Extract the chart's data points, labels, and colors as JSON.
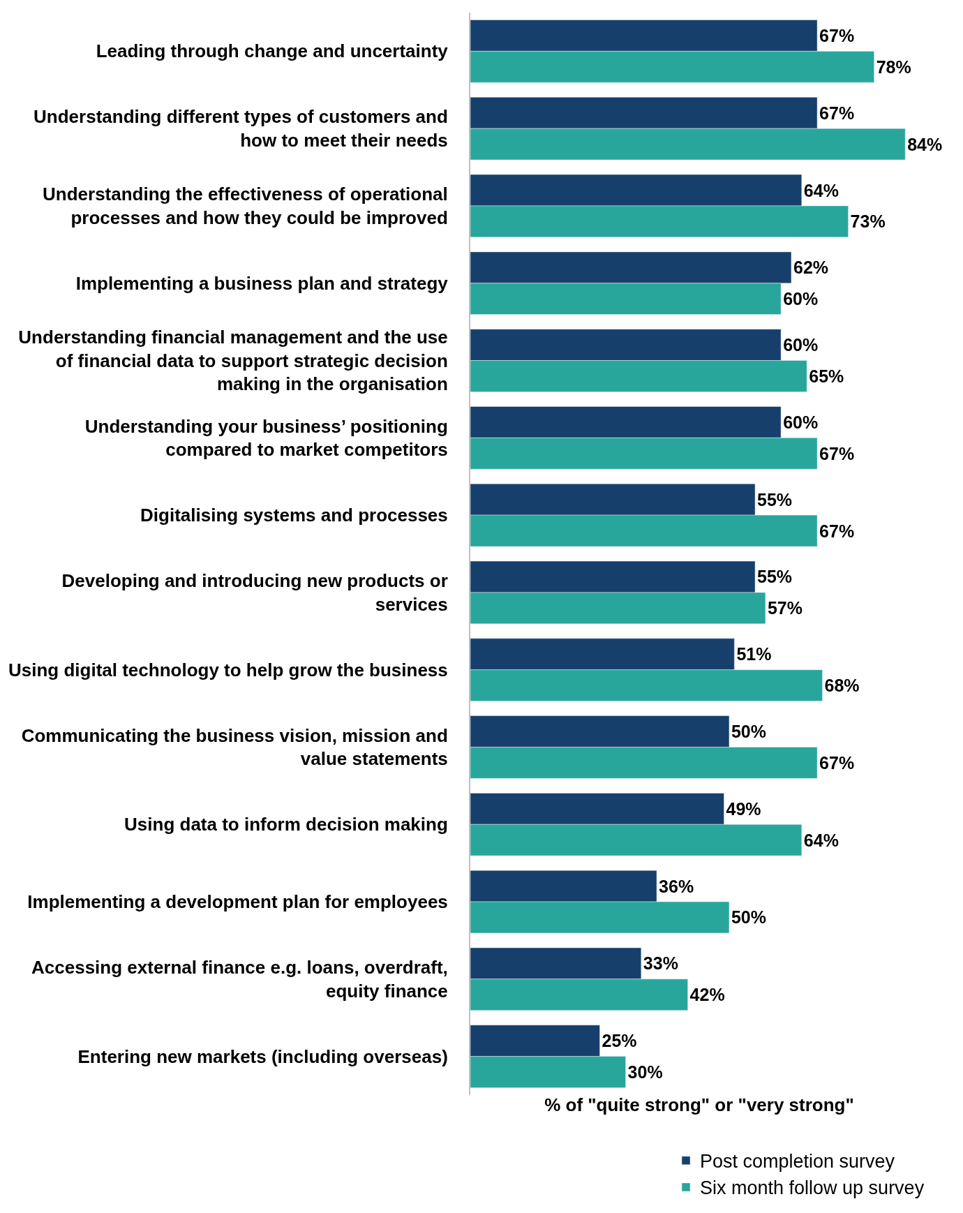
{
  "chart_data": {
    "type": "bar",
    "orientation": "horizontal",
    "xlabel": "% of \"quite strong\" or \"very strong\"",
    "categories": [
      "Leading through change and uncertainty",
      "Understanding different types of customers and\nhow to meet their needs",
      "Understanding the effectiveness of operational\nprocesses and how they could be improved",
      "Implementing a business plan and strategy",
      "Understanding financial management and the use\nof financial data to support strategic decision\nmaking in the organisation",
      "Understanding your business’ positioning\ncompared to market competitors",
      "Digitalising systems and processes",
      "Developing and introducing new products or\nservices",
      "Using digital technology to help grow the business",
      "Communicating the business vision, mission and\nvalue statements",
      "Using data to inform decision making",
      "Implementing a development plan for employees",
      "Accessing external finance e.g. loans, overdraft,\nequity finance",
      "Entering new markets (including overseas)"
    ],
    "series": [
      {
        "name": "Post completion survey",
        "color": "#16406b",
        "values": [
          67,
          67,
          64,
          62,
          60,
          60,
          55,
          55,
          51,
          50,
          49,
          36,
          33,
          25
        ],
        "value_labels": [
          "67%",
          "67%",
          "64%",
          "62%",
          "60%",
          "60%",
          "55%",
          "55%",
          "51%",
          "50%",
          "49%",
          "36%",
          "33%",
          "25%"
        ]
      },
      {
        "name": "Six month follow up survey",
        "color": "#29a69b",
        "values": [
          78,
          84,
          73,
          60,
          65,
          67,
          67,
          57,
          68,
          67,
          64,
          50,
          42,
          30
        ],
        "value_labels": [
          "78%",
          "84%",
          "73%",
          "60%",
          "65%",
          "67%",
          "67%",
          "57%",
          "68%",
          "67%",
          "64%",
          "50%",
          "42%",
          "30%"
        ]
      }
    ],
    "legend": "bottom"
  }
}
